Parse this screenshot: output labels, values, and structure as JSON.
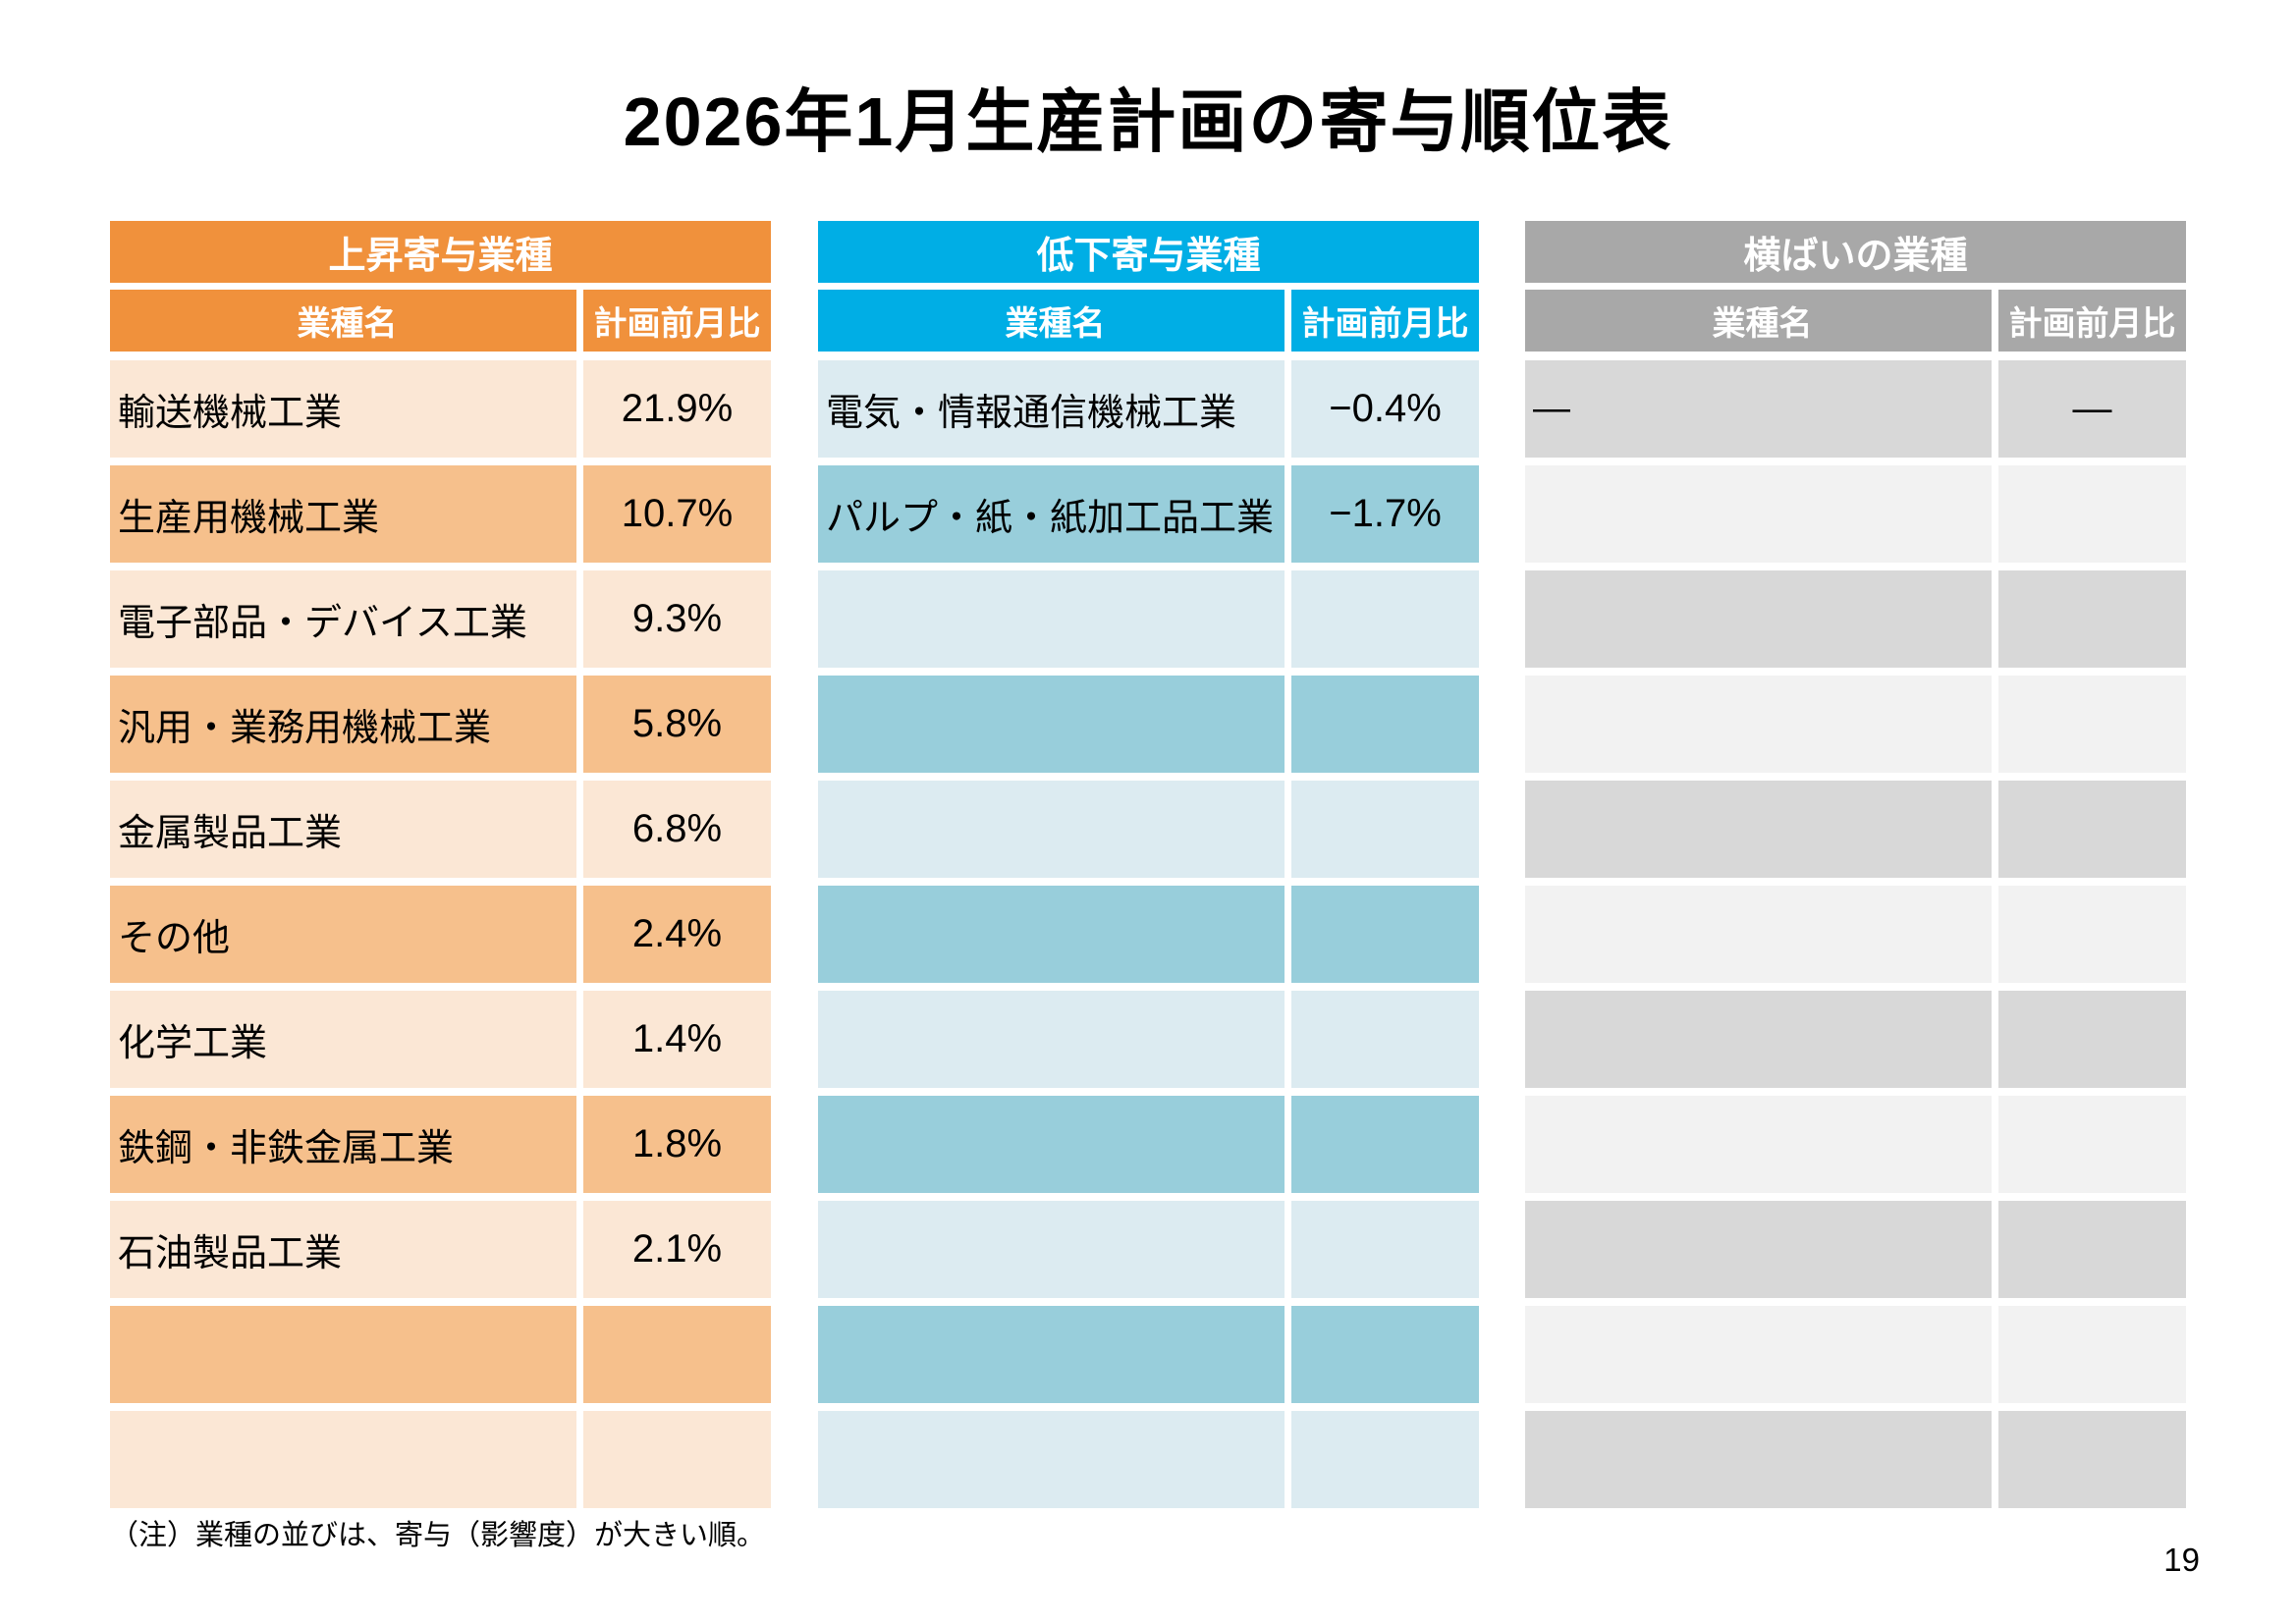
{
  "title": "2026年1月生産計画の寄与順位表",
  "note": "（注）業種の並びは、寄与（影響度）が大きい順。",
  "page_number": "19",
  "colors": {
    "rising_header": "#F0913C",
    "rising_row_light": "#FBE7D5",
    "rising_row_dark": "#F6C08C",
    "falling_header": "#00AEE5",
    "falling_row_light": "#DCEBF1",
    "falling_row_dark": "#98CEDB",
    "flat_header": "#A8A8A8",
    "flat_row_dark": "#D8D8D8",
    "flat_row_light": "#F2F2F2",
    "text": "#000000",
    "header_text": "#FFFFFF"
  },
  "tables": [
    {
      "id": "rising",
      "header": "上昇寄与業種",
      "columns": {
        "name": "業種名",
        "value": "計画前月比"
      },
      "rows": [
        {
          "name": "輸送機械工業",
          "value": "21.9%"
        },
        {
          "name": "生産用機械工業",
          "value": "10.7%"
        },
        {
          "name": "電子部品・デバイス工業",
          "value": "9.3%"
        },
        {
          "name": "汎用・業務用機械工業",
          "value": "5.8%"
        },
        {
          "name": "金属製品工業",
          "value": "6.8%"
        },
        {
          "name": "その他",
          "value": "2.4%"
        },
        {
          "name": "化学工業",
          "value": "1.4%"
        },
        {
          "name": "鉄鋼・非鉄金属工業",
          "value": "1.8%"
        },
        {
          "name": "石油製品工業",
          "value": "2.1%"
        },
        {
          "name": "",
          "value": ""
        },
        {
          "name": "",
          "value": ""
        }
      ]
    },
    {
      "id": "falling",
      "header": "低下寄与業種",
      "columns": {
        "name": "業種名",
        "value": "計画前月比"
      },
      "rows": [
        {
          "name": "電気・情報通信機械工業",
          "value": "−0.4%"
        },
        {
          "name": "パルプ・紙・紙加工品工業",
          "value": "−1.7%"
        },
        {
          "name": "",
          "value": ""
        },
        {
          "name": "",
          "value": ""
        },
        {
          "name": "",
          "value": ""
        },
        {
          "name": "",
          "value": ""
        },
        {
          "name": "",
          "value": ""
        },
        {
          "name": "",
          "value": ""
        },
        {
          "name": "",
          "value": ""
        },
        {
          "name": "",
          "value": ""
        },
        {
          "name": "",
          "value": ""
        }
      ]
    },
    {
      "id": "flat",
      "header": "横ばいの業種",
      "columns": {
        "name": "業種名",
        "value": "計画前月比"
      },
      "rows": [
        {
          "name": "—",
          "value": "—"
        },
        {
          "name": "",
          "value": ""
        },
        {
          "name": "",
          "value": ""
        },
        {
          "name": "",
          "value": ""
        },
        {
          "name": "",
          "value": ""
        },
        {
          "name": "",
          "value": ""
        },
        {
          "name": "",
          "value": ""
        },
        {
          "name": "",
          "value": ""
        },
        {
          "name": "",
          "value": ""
        },
        {
          "name": "",
          "value": ""
        },
        {
          "name": "",
          "value": ""
        }
      ]
    }
  ]
}
